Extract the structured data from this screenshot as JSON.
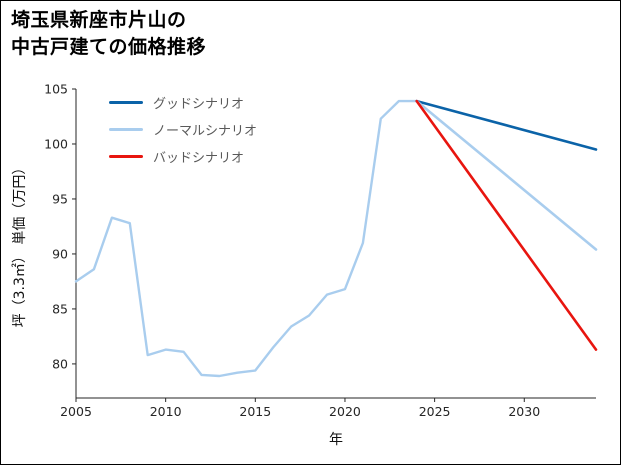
{
  "header": {
    "title_line1": "埼玉県新座市片山の",
    "title_line2": "中古戸建ての価格推移"
  },
  "colors": {
    "spine": "#262626",
    "tick": "#262626",
    "legend_label": "#595959",
    "background": "#ffffff",
    "border": "#000000"
  },
  "chart_data": {
    "type": "line",
    "title": "埼玉県新座市片山の中古戸建ての価格推移",
    "xlabel": "年",
    "ylabel": "坪（3.3㎡） 単価（万円）",
    "xlim": [
      2005,
      2034
    ],
    "ylim": [
      76.9,
      105
    ],
    "xticks": [
      2005,
      2010,
      2015,
      2020,
      2025,
      2030
    ],
    "yticks": [
      80,
      85,
      90,
      95,
      100,
      105
    ],
    "grid": false,
    "legend_position": "upper-left",
    "series": [
      {
        "id": "history",
        "label": null,
        "color": "#a9cdee",
        "width": 2.4,
        "x": [
          2005,
          2006,
          2007,
          2008,
          2009,
          2010,
          2011,
          2012,
          2013,
          2014,
          2015,
          2016,
          2017,
          2018,
          2019,
          2020,
          2021,
          2022,
          2023,
          2024
        ],
        "y": [
          87.5,
          88.6,
          93.3,
          92.8,
          80.8,
          81.3,
          81.1,
          79.0,
          78.9,
          79.2,
          79.4,
          81.5,
          83.4,
          84.4,
          86.3,
          86.8,
          91.0,
          102.3,
          103.9,
          103.9
        ]
      },
      {
        "id": "good-scenario",
        "label": "グッドシナリオ",
        "color": "#0b63a8",
        "width": 2.6,
        "x": [
          2024,
          2034
        ],
        "y": [
          103.9,
          99.5
        ]
      },
      {
        "id": "normal-scenario",
        "label": "ノーマルシナリオ",
        "color": "#a9cdee",
        "width": 2.6,
        "x": [
          2024,
          2034
        ],
        "y": [
          103.9,
          90.4
        ]
      },
      {
        "id": "bad-scenario",
        "label": "バッドシナリオ",
        "color": "#e8150f",
        "width": 2.6,
        "x": [
          2024,
          2034
        ],
        "y": [
          103.9,
          81.3
        ]
      }
    ]
  }
}
